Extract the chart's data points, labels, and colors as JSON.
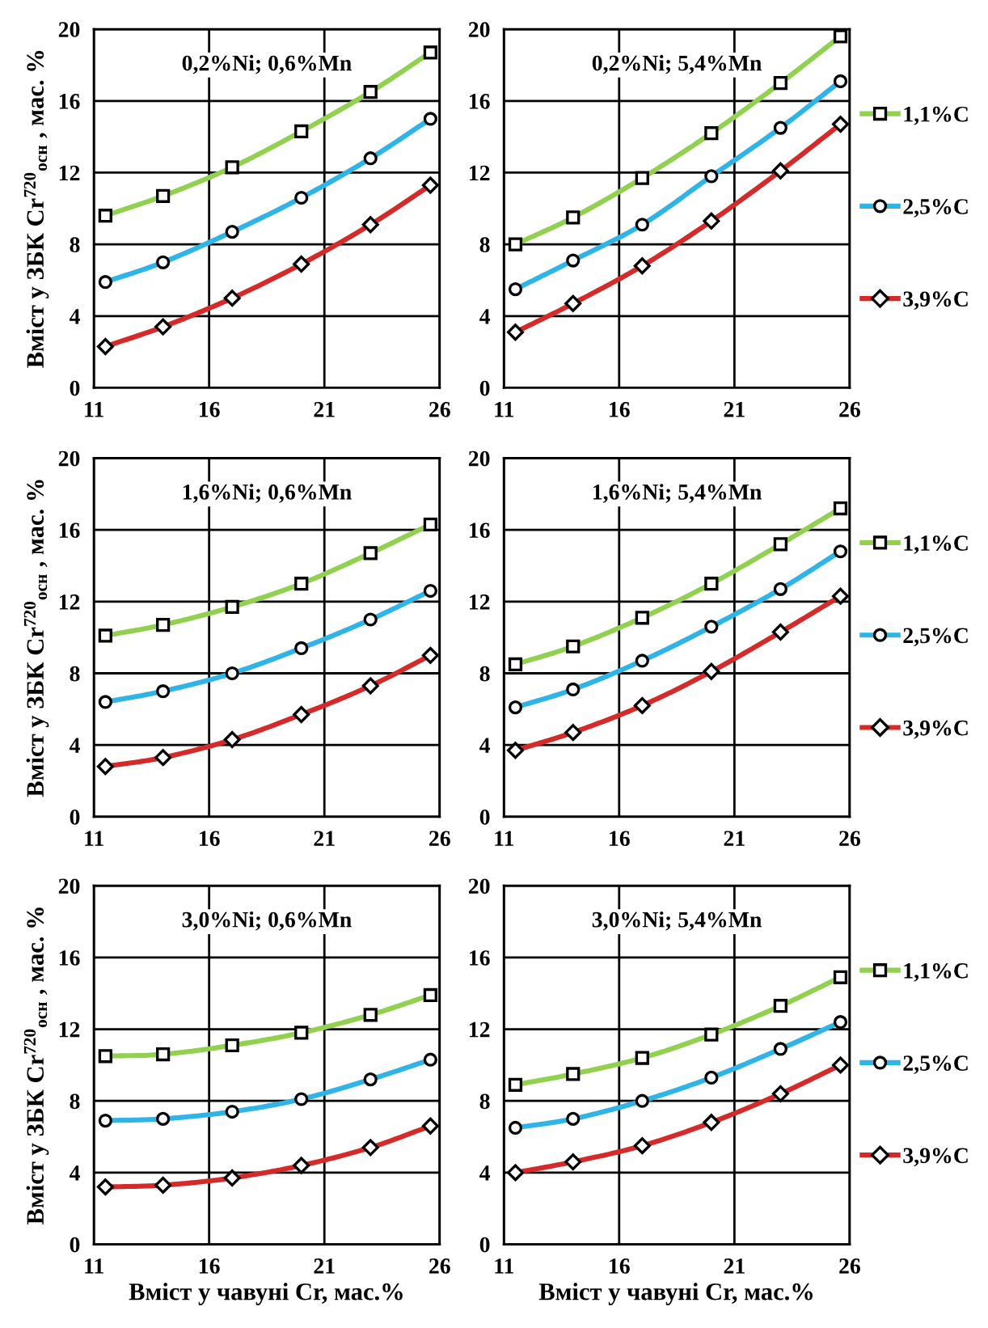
{
  "chart_data": [
    {
      "type": "line",
      "title": "0,2%Ni; 0,6%Mn",
      "ylabel": "Вміст у ЗБК Cr$^{720}$$_{осн}$ , мас. %",
      "x": [
        11.5,
        14,
        17,
        20,
        23,
        25.6
      ],
      "xlim": [
        11,
        26
      ],
      "xticks": [
        11,
        16,
        21,
        26
      ],
      "ylim": [
        0,
        20
      ],
      "yticks": [
        0,
        4,
        8,
        12,
        16,
        20
      ],
      "grid": true,
      "legend": false,
      "series": [
        {
          "color": "#92d050",
          "marker": "square",
          "values": [
            9.6,
            10.7,
            12.3,
            14.3,
            16.5,
            18.7
          ]
        },
        {
          "color": "#2eb4e6",
          "marker": "circle",
          "values": [
            5.9,
            7.0,
            8.7,
            10.6,
            12.8,
            15.0
          ]
        },
        {
          "color": "#d42a2a",
          "marker": "diamond",
          "values": [
            2.3,
            3.4,
            5.0,
            6.9,
            9.1,
            11.3
          ]
        }
      ]
    },
    {
      "type": "line",
      "title": "0,2%Ni; 5,4%Mn",
      "x": [
        11.5,
        14,
        17,
        20,
        23,
        25.6
      ],
      "xlim": [
        11,
        26
      ],
      "xticks": [
        11,
        16,
        21,
        26
      ],
      "ylim": [
        0,
        20
      ],
      "yticks": [
        0,
        4,
        8,
        12,
        16,
        20
      ],
      "grid": true,
      "legend": "right",
      "series": [
        {
          "name": "1,1%C",
          "color": "#92d050",
          "marker": "square",
          "values": [
            8.0,
            9.5,
            11.7,
            14.2,
            17.0,
            19.6
          ]
        },
        {
          "name": "2,5%C",
          "color": "#2eb4e6",
          "marker": "circle",
          "values": [
            5.5,
            7.1,
            9.1,
            11.8,
            14.5,
            17.1
          ]
        },
        {
          "name": "3,9%C",
          "color": "#d42a2a",
          "marker": "diamond",
          "values": [
            3.1,
            4.7,
            6.8,
            9.3,
            12.1,
            14.7
          ]
        }
      ]
    },
    {
      "type": "line",
      "title": "1,6%Ni; 0,6%Mn",
      "ylabel": "Вміст у ЗБК Cr$^{720}$$_{осн}$ , мас. %",
      "x": [
        11.5,
        14,
        17,
        20,
        23,
        25.6
      ],
      "xlim": [
        11,
        26
      ],
      "xticks": [
        11,
        16,
        21,
        26
      ],
      "ylim": [
        0,
        20
      ],
      "yticks": [
        0,
        4,
        8,
        12,
        16,
        20
      ],
      "grid": true,
      "legend": false,
      "series": [
        {
          "color": "#92d050",
          "marker": "square",
          "values": [
            10.1,
            10.7,
            11.7,
            13.0,
            14.7,
            16.3
          ]
        },
        {
          "color": "#2eb4e6",
          "marker": "circle",
          "values": [
            6.4,
            7.0,
            8.0,
            9.4,
            11.0,
            12.6
          ]
        },
        {
          "color": "#d42a2a",
          "marker": "diamond",
          "values": [
            2.8,
            3.3,
            4.3,
            5.7,
            7.3,
            9.0
          ]
        }
      ]
    },
    {
      "type": "line",
      "title": "1,6%Ni; 5,4%Mn",
      "x": [
        11.5,
        14,
        17,
        20,
        23,
        25.6
      ],
      "xlim": [
        11,
        26
      ],
      "xticks": [
        11,
        16,
        21,
        26
      ],
      "ylim": [
        0,
        20
      ],
      "yticks": [
        0,
        4,
        8,
        12,
        16,
        20
      ],
      "grid": true,
      "legend": "right",
      "series": [
        {
          "name": "1,1%C",
          "color": "#92d050",
          "marker": "square",
          "values": [
            8.5,
            9.5,
            11.1,
            13.0,
            15.2,
            17.2
          ]
        },
        {
          "name": "2,5%C",
          "color": "#2eb4e6",
          "marker": "circle",
          "values": [
            6.1,
            7.1,
            8.7,
            10.6,
            12.7,
            14.8
          ]
        },
        {
          "name": "3,9%C",
          "color": "#d42a2a",
          "marker": "diamond",
          "values": [
            3.7,
            4.7,
            6.2,
            8.1,
            10.3,
            12.3
          ]
        }
      ]
    },
    {
      "type": "line",
      "title": "3,0%Ni; 0,6%Mn",
      "ylabel": "Вміст у ЗБК Cr$^{720}$$_{осн}$ , мас. %",
      "xlabel": "Вміст у чавуні Cr, мас.%",
      "x": [
        11.5,
        14,
        17,
        20,
        23,
        25.6
      ],
      "xlim": [
        11,
        26
      ],
      "xticks": [
        11,
        16,
        21,
        26
      ],
      "ylim": [
        0,
        20
      ],
      "yticks": [
        0,
        4,
        8,
        12,
        16,
        20
      ],
      "grid": true,
      "legend": false,
      "series": [
        {
          "color": "#92d050",
          "marker": "square",
          "values": [
            10.5,
            10.6,
            11.1,
            11.8,
            12.8,
            13.9
          ]
        },
        {
          "color": "#2eb4e6",
          "marker": "circle",
          "values": [
            6.9,
            7.0,
            7.4,
            8.1,
            9.2,
            10.3
          ]
        },
        {
          "color": "#d42a2a",
          "marker": "diamond",
          "values": [
            3.2,
            3.3,
            3.7,
            4.4,
            5.4,
            6.6
          ]
        }
      ]
    },
    {
      "type": "line",
      "title": "3,0%Ni; 5,4%Mn",
      "xlabel": "Вміст у чавуні Cr, мас.%",
      "x": [
        11.5,
        14,
        17,
        20,
        23,
        25.6
      ],
      "xlim": [
        11,
        26
      ],
      "xticks": [
        11,
        16,
        21,
        26
      ],
      "ylim": [
        0,
        20
      ],
      "yticks": [
        0,
        4,
        8,
        12,
        16,
        20
      ],
      "grid": true,
      "legend": "right",
      "series": [
        {
          "name": "1,1%C",
          "color": "#92d050",
          "marker": "square",
          "values": [
            8.9,
            9.5,
            10.4,
            11.7,
            13.3,
            14.9
          ]
        },
        {
          "name": "2,5%C",
          "color": "#2eb4e6",
          "marker": "circle",
          "values": [
            6.5,
            7.0,
            8.0,
            9.3,
            10.9,
            12.4
          ]
        },
        {
          "name": "3,9%C",
          "color": "#d42a2a",
          "marker": "diamond",
          "values": [
            4.0,
            4.6,
            5.5,
            6.8,
            8.4,
            10.0
          ]
        }
      ]
    }
  ]
}
